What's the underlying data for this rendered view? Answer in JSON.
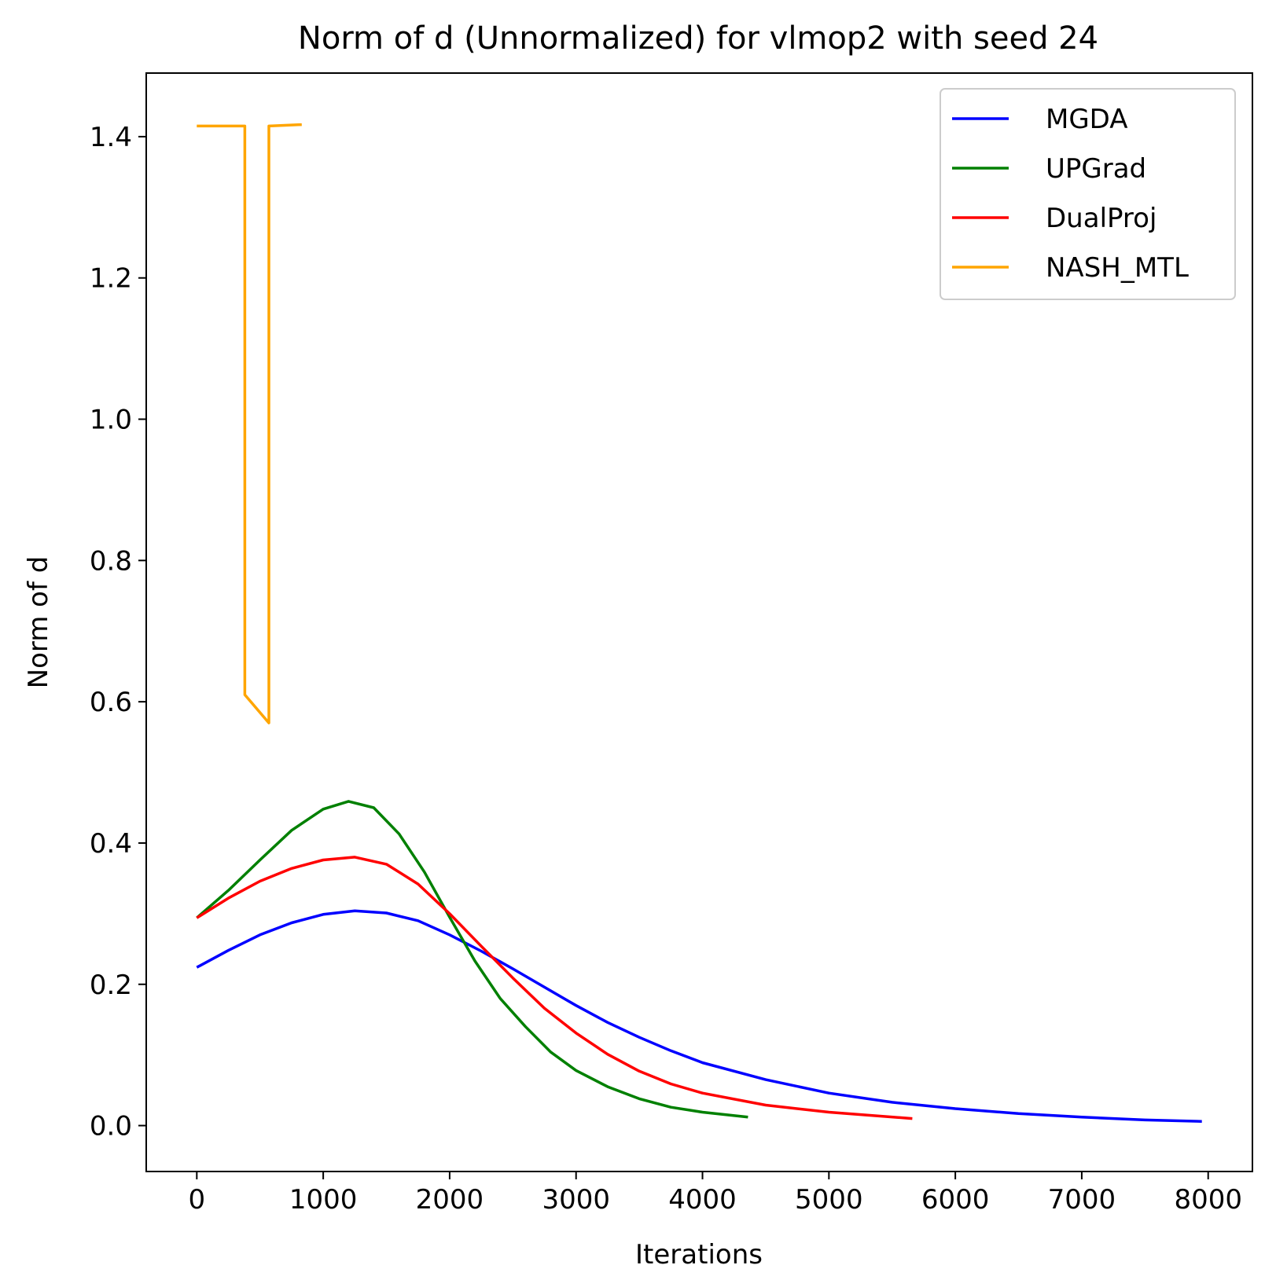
{
  "chart_data": {
    "type": "line",
    "title": "Norm of d (Unnormalized) for vlmop2 with seed 24",
    "xlabel": "Iterations",
    "ylabel": "Norm of d",
    "xlim": [
      -400,
      8350
    ],
    "ylim": [
      -0.065,
      1.49
    ],
    "xticks": [
      0,
      1000,
      2000,
      3000,
      4000,
      5000,
      6000,
      7000,
      8000
    ],
    "yticks": [
      0.0,
      0.2,
      0.4,
      0.6,
      0.8,
      1.0,
      1.2,
      1.4
    ],
    "xtick_labels": [
      "0",
      "1000",
      "2000",
      "3000",
      "4000",
      "5000",
      "6000",
      "7000",
      "8000"
    ],
    "ytick_labels": [
      "0.0",
      "0.2",
      "0.4",
      "0.6",
      "0.8",
      "1.0",
      "1.2",
      "1.4"
    ],
    "grid": false,
    "legend_position": "top-right",
    "series": [
      {
        "name": "MGDA",
        "color": "#0000ff",
        "x": [
          0,
          250,
          500,
          750,
          1000,
          1250,
          1500,
          1750,
          2000,
          2250,
          2500,
          2750,
          3000,
          3250,
          3500,
          3750,
          4000,
          4500,
          5000,
          5500,
          6000,
          6500,
          7000,
          7500,
          7950
        ],
        "y": [
          0.224,
          0.248,
          0.27,
          0.287,
          0.299,
          0.304,
          0.301,
          0.29,
          0.27,
          0.247,
          0.222,
          0.196,
          0.17,
          0.146,
          0.125,
          0.106,
          0.089,
          0.065,
          0.046,
          0.033,
          0.024,
          0.017,
          0.012,
          0.008,
          0.006
        ]
      },
      {
        "name": "UPGrad",
        "color": "#008000",
        "x": [
          0,
          250,
          500,
          750,
          1000,
          1200,
          1400,
          1600,
          1800,
          2000,
          2200,
          2400,
          2600,
          2800,
          3000,
          3250,
          3500,
          3750,
          4000,
          4360
        ],
        "y": [
          0.294,
          0.333,
          0.376,
          0.418,
          0.448,
          0.459,
          0.45,
          0.413,
          0.359,
          0.295,
          0.233,
          0.18,
          0.14,
          0.104,
          0.078,
          0.055,
          0.038,
          0.026,
          0.019,
          0.012
        ]
      },
      {
        "name": "DualProj",
        "color": "#ff0000",
        "x": [
          0,
          250,
          500,
          750,
          1000,
          1250,
          1500,
          1750,
          2000,
          2250,
          2500,
          2750,
          3000,
          3250,
          3500,
          3750,
          4000,
          4500,
          5000,
          5660
        ],
        "y": [
          0.294,
          0.322,
          0.346,
          0.364,
          0.376,
          0.38,
          0.37,
          0.342,
          0.3,
          0.254,
          0.209,
          0.166,
          0.131,
          0.101,
          0.077,
          0.059,
          0.046,
          0.029,
          0.019,
          0.01
        ]
      },
      {
        "name": "NASH_MTL",
        "color": "#ffa500",
        "x": [
          0,
          380,
          380,
          570,
          570,
          830
        ],
        "y": [
          1.415,
          1.415,
          0.61,
          0.57,
          1.415,
          1.417
        ]
      }
    ]
  }
}
